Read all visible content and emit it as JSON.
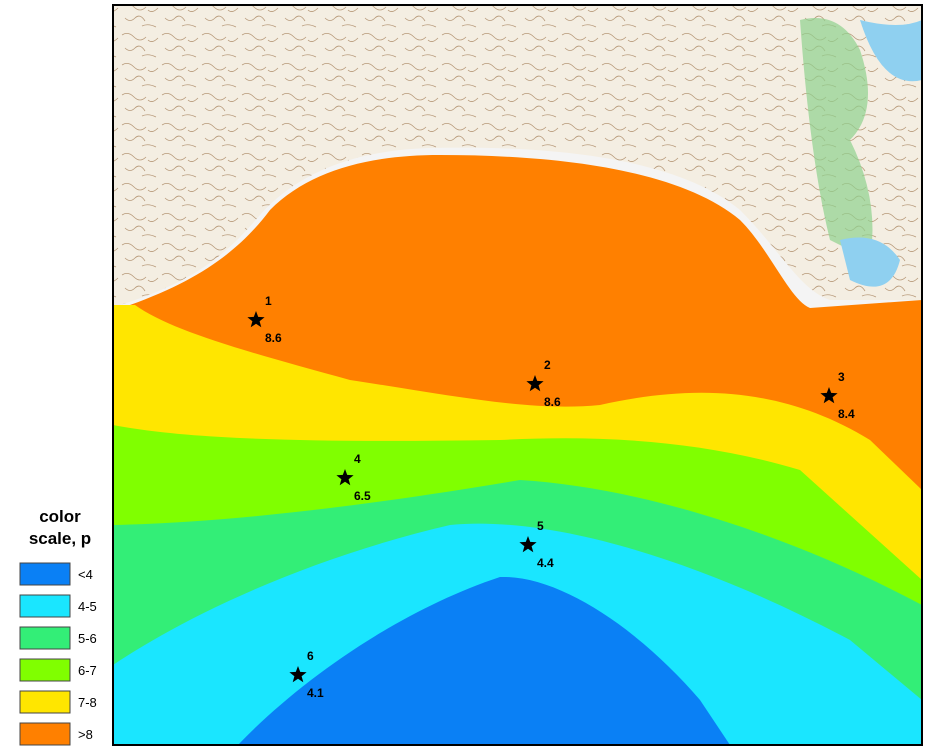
{
  "legend": {
    "title": "color scale, p",
    "items": [
      {
        "label": "<4",
        "color": "#0a80f5"
      },
      {
        "label": "4-5",
        "color": "#1ae6ff"
      },
      {
        "label": "5-6",
        "color": "#33ee77"
      },
      {
        "label": "6-7",
        "color": "#80ff00"
      },
      {
        "label": "7-8",
        "color": "#ffe600"
      },
      {
        "label": ">8",
        "color": "#ff8000"
      }
    ]
  },
  "stations": [
    {
      "id": "1",
      "value": 8.6
    },
    {
      "id": "2",
      "value": 8.6
    },
    {
      "id": "3",
      "value": 8.4
    },
    {
      "id": "4",
      "value": 6.5
    },
    {
      "id": "5",
      "value": 4.4
    },
    {
      "id": "6",
      "value": 4.1
    }
  ]
}
